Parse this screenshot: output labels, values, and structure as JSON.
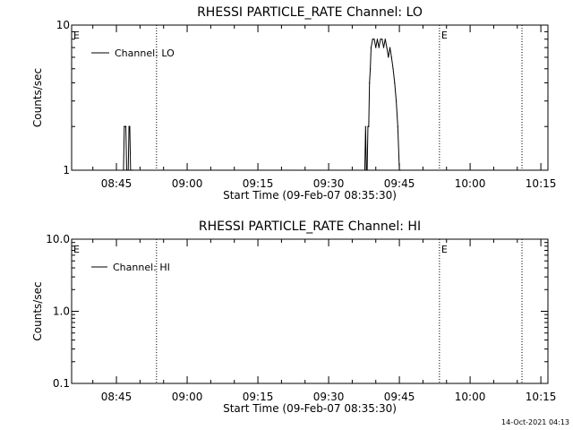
{
  "footer": {
    "timestamp": "14-Oct-2021 04:13"
  },
  "chart_data": [
    {
      "type": "line",
      "title": "RHESSI PARTICLE_RATE Channel: LO",
      "xlabel": "Start Time (09-Feb-07 08:35:30)",
      "ylabel": "Counts/sec",
      "y_scale": "log",
      "ylim": [
        1,
        10
      ],
      "ytick_values": [
        1,
        10
      ],
      "ytick_labels": [
        "1",
        "10"
      ],
      "xlim": [
        "08:35:30",
        "10:16:30"
      ],
      "xtick_values": [
        "08:45",
        "09:00",
        "09:15",
        "09:30",
        "09:45",
        "10:00",
        "10:15"
      ],
      "xtick_labels": [
        "08:45",
        "09:00",
        "09:15",
        "09:30",
        "09:45",
        "10:00",
        "10:15"
      ],
      "vlines": [
        "08:53:30",
        "09:53:30",
        "10:11:00"
      ],
      "marker_labels": [
        {
          "text": "E",
          "x": "08:35:30"
        },
        {
          "text": "E",
          "x": "09:53:30"
        }
      ],
      "legend": "top-left",
      "series": [
        {
          "name": "Channel: LO",
          "x": [
            "08:46:30",
            "08:46:40",
            "08:46:50",
            "08:47:00",
            "08:47:10",
            "08:47:20",
            "08:47:30",
            "08:47:40",
            "08:47:50",
            "08:48:00",
            "08:48:10",
            "08:48:20",
            "08:48:30",
            "09:37:40",
            "09:37:50",
            "09:38:00",
            "09:38:10",
            "09:38:20",
            "09:38:30",
            "09:38:40",
            "09:38:50",
            "09:39:00",
            "09:39:20",
            "09:39:40",
            "09:40:00",
            "09:40:20",
            "09:40:40",
            "09:41:00",
            "09:41:20",
            "09:41:40",
            "09:42:00",
            "09:42:20",
            "09:42:40",
            "09:43:00",
            "09:43:20",
            "09:43:40",
            "09:44:00",
            "09:44:20",
            "09:44:40",
            "09:45:00",
            "09:45:20"
          ],
          "y": [
            1,
            2,
            2,
            2,
            1,
            1,
            1,
            2,
            2,
            1,
            1,
            1,
            1,
            1,
            2,
            1,
            1,
            2,
            2,
            4,
            5,
            7,
            8,
            8,
            7,
            8,
            7,
            8,
            8,
            7,
            8,
            7,
            6,
            7,
            6,
            5,
            4,
            3,
            2,
            1,
            1
          ]
        }
      ]
    },
    {
      "type": "line",
      "title": "RHESSI PARTICLE_RATE Channel: HI",
      "xlabel": "Start Time (09-Feb-07 08:35:30)",
      "ylabel": "Counts/sec",
      "y_scale": "log",
      "ylim": [
        0.1,
        10
      ],
      "ytick_values": [
        0.1,
        1,
        10
      ],
      "ytick_labels": [
        "0.1",
        "1.0",
        "10.0"
      ],
      "xlim": [
        "08:35:30",
        "10:16:30"
      ],
      "xtick_values": [
        "08:45",
        "09:00",
        "09:15",
        "09:30",
        "09:45",
        "10:00",
        "10:15"
      ],
      "xtick_labels": [
        "08:45",
        "09:00",
        "09:15",
        "09:30",
        "09:45",
        "10:00",
        "10:15"
      ],
      "vlines": [
        "08:53:30",
        "09:53:30",
        "10:11:00"
      ],
      "marker_labels": [
        {
          "text": "E",
          "x": "08:35:30"
        },
        {
          "text": "E",
          "x": "09:53:30"
        }
      ],
      "legend": "top-left",
      "series": [
        {
          "name": "Channel: HI",
          "x": [],
          "y": []
        }
      ]
    }
  ]
}
